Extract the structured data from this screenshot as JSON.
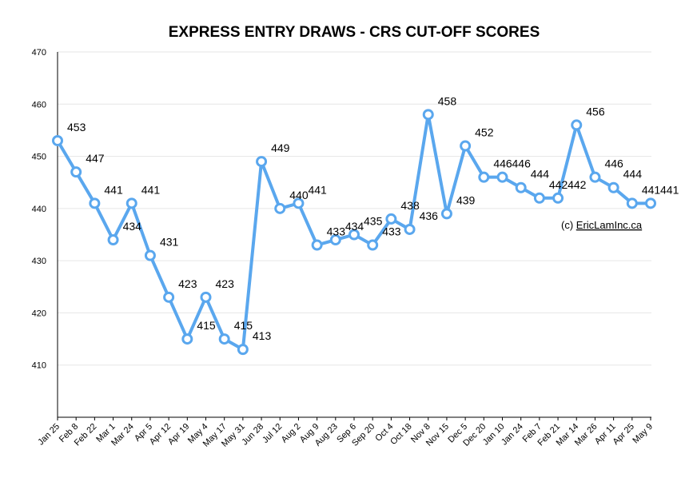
{
  "chart_data": {
    "type": "line",
    "title": "EXPRESS ENTRY DRAWS - CRS CUT-OFF SCORES",
    "xlabel": "",
    "ylabel": "",
    "ylim": [
      400,
      470
    ],
    "yticks": [
      410,
      420,
      430,
      440,
      450,
      460,
      470
    ],
    "grid": true,
    "credit_prefix": "(c) ",
    "credit_link": "EricLamInc.ca",
    "line_color": "#5aa7ee",
    "categories": [
      "Jan 25",
      "Feb 8",
      "Feb 22",
      "Mar 1",
      "Mar 24",
      "Apr 5",
      "Apr 12",
      "Apr 19",
      "May 4",
      "May 17",
      "May 31",
      "Jun 28",
      "Jul 12",
      "Aug 2",
      "Aug 9",
      "Aug 23",
      "Sep 6",
      "Sep 20",
      "Oct 4",
      "Oct 18",
      "Nov 8",
      "Nov 15",
      "Dec 5",
      "Dec 20",
      "Jan 10",
      "Jan 24",
      "Feb 7",
      "Feb 21",
      "Mar 14",
      "Mar 26",
      "Apr 11",
      "Apr 25",
      "May 9"
    ],
    "values": [
      453,
      447,
      441,
      434,
      441,
      431,
      423,
      415,
      423,
      415,
      413,
      449,
      440,
      441,
      433,
      434,
      435,
      433,
      438,
      436,
      458,
      439,
      452,
      446,
      446,
      444,
      442,
      442,
      456,
      446,
      444,
      441,
      441
    ]
  }
}
